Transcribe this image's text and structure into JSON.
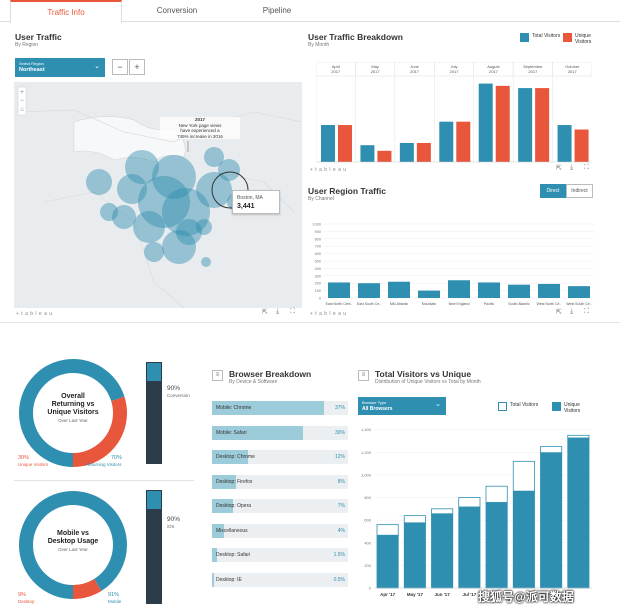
{
  "tabs": [
    {
      "label": "Traffic Info",
      "active": true
    },
    {
      "label": "Conversion",
      "active": false
    },
    {
      "label": "Pipeline",
      "active": false
    }
  ],
  "user_traffic": {
    "title": "User Traffic",
    "subtitle": "By Region",
    "select_label": "Select Region",
    "select_value": "Northeast",
    "zoom_out": "−",
    "zoom_in": "+",
    "annotation": [
      "2017",
      "New York page views",
      "have experienced a",
      "745% increase in 2016"
    ],
    "tooltip_city": "Boston, MA",
    "tooltip_value": "3,441",
    "footer": "+ t a b l e a u"
  },
  "breakdown": {
    "title": "User Traffic Breakdown",
    "subtitle": "By Month",
    "legend": [
      {
        "label": "Total Visitors",
        "color": "#2e8fb0"
      },
      {
        "label": "Unique Visitors",
        "color": "#e8573b"
      }
    ],
    "footer": "+ t a b l e a u",
    "chart_data": {
      "type": "bar",
      "categories": [
        "April 2017",
        "May 2017",
        "June 2017",
        "July 2017",
        "August 2017",
        "September 2017",
        "October 2017"
      ],
      "series": [
        {
          "name": "Total Visitors",
          "values": [
            330,
            150,
            170,
            360,
            700,
            660,
            330
          ]
        },
        {
          "name": "Unique Visitors",
          "values": [
            330,
            100,
            170,
            360,
            680,
            660,
            290
          ]
        }
      ]
    }
  },
  "region": {
    "title": "User Region Traffic",
    "subtitle": "By Channel",
    "toggle": [
      "Direct",
      "Indirect"
    ],
    "footer": "+ t a b l e a u",
    "chart_data": {
      "type": "bar",
      "categories": [
        "East North Cent..",
        "East South Ce..",
        "Mid-Atlantic",
        "Mountain",
        "New England",
        "Pacific",
        "South Atlantic",
        "West North Ce..",
        "West South Ce.."
      ],
      "values": [
        210,
        200,
        220,
        100,
        240,
        210,
        180,
        190,
        160
      ],
      "ylim": [
        0,
        1000
      ],
      "yticks": [
        0,
        100,
        200,
        300,
        400,
        500,
        600,
        700,
        800,
        900,
        1000
      ]
    }
  },
  "donut1": {
    "title": [
      "Overall",
      "Returning vs",
      "Unique Visitors"
    ],
    "subtitle": "Over Last Year",
    "left_pct": "30%",
    "left_label": "Unique Visitors",
    "right_pct": "70%",
    "right_label": "Returning Visitors",
    "bar_pct": "90%",
    "bar_label": "Conversion",
    "chart_data": {
      "type": "pie",
      "categories": [
        "Returning Visitors",
        "Unique Visitors"
      ],
      "values": [
        70,
        30
      ]
    }
  },
  "donut2": {
    "title": [
      "Mobile vs",
      "Desktop Usage"
    ],
    "subtitle": "Over Last Year",
    "left_pct": "9%",
    "left_label": "Desktop",
    "right_pct": "91%",
    "right_label": "Mobile",
    "bar_pct": "90%",
    "bar_label": "iOS",
    "chart_data": {
      "type": "pie",
      "categories": [
        "Mobile",
        "Desktop"
      ],
      "values": [
        91,
        9
      ]
    }
  },
  "browser": {
    "title": "Browser Breakdown",
    "subtitle": "By Device & Software",
    "chart_data": {
      "type": "bar",
      "categories": [
        "Mobile: Chrome",
        "Mobile: Safari",
        "Desktop: Chrome",
        "Desktop: Firefox",
        "Desktop: Opera",
        "Miscellaneous",
        "Desktop: Safari",
        "Desktop: IE"
      ],
      "labels": [
        "37%",
        "30%",
        "12%",
        "8%",
        "7%",
        "4%",
        "1.5%",
        "0.5%"
      ],
      "values": [
        37,
        30,
        12,
        8,
        7,
        4,
        1.5,
        0.5
      ]
    }
  },
  "tvu": {
    "title": "Total Visitors vs Unique",
    "subtitle": "Distribution of Unique Visitors vs Total by Month",
    "select_label": "Browser Type",
    "select_value": "All Browsers",
    "legend": [
      {
        "label": "Total Visitors",
        "color": "#ffffff"
      },
      {
        "label": "Unique Visitors",
        "color": "#2e8fb0"
      }
    ],
    "chart_data": {
      "type": "bar",
      "categories": [
        "Apr '17",
        "May '17",
        "Jun '17",
        "Jul '17",
        "",
        "",
        "",
        ""
      ],
      "series": [
        {
          "name": "Total Visitors",
          "values": [
            560,
            640,
            700,
            800,
            900,
            1120,
            1250,
            1350
          ]
        },
        {
          "name": "Unique Visitors",
          "values": [
            470,
            580,
            660,
            720,
            760,
            860,
            1200,
            1330
          ]
        }
      ],
      "ylim": [
        0,
        1450
      ],
      "yticks": [
        0,
        200,
        400,
        600,
        800,
        1000,
        1200,
        1400
      ]
    }
  },
  "watermark": "搜狐号@派可数据"
}
